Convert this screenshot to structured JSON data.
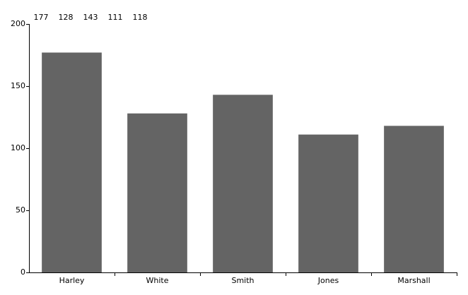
{
  "chart_data": {
    "type": "bar",
    "categories": [
      "Harley",
      "White",
      "Smith",
      "Jones",
      "Marshall"
    ],
    "values": [
      177,
      128,
      143,
      111,
      118
    ],
    "color": "#646464",
    "ylim": [
      0,
      200
    ],
    "yticks": [
      0,
      50,
      100,
      150,
      200
    ],
    "grid": false
  }
}
